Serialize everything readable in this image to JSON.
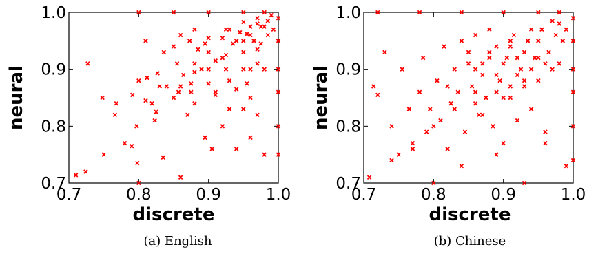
{
  "chart_data": [
    {
      "type": "scatter",
      "caption": "(a) English",
      "xlabel": "discrete",
      "ylabel": "neural",
      "xlim": [
        0.7,
        1.0
      ],
      "ylim": [
        0.7,
        1.0
      ],
      "xticks": [
        "0.7",
        "0.8",
        "0.9",
        "1.0"
      ],
      "yticks": [
        "0.7",
        "0.8",
        "0.9",
        "1.0"
      ],
      "marker": "x",
      "color": "#ff0000",
      "grid": false,
      "points": [
        [
          0.71,
          0.714
        ],
        [
          0.724,
          0.72
        ],
        [
          0.727,
          0.91
        ],
        [
          0.748,
          0.85
        ],
        [
          0.75,
          0.75
        ],
        [
          0.768,
          0.84
        ],
        [
          0.766,
          0.82
        ],
        [
          0.78,
          0.77
        ],
        [
          0.791,
          0.855
        ],
        [
          0.79,
          0.765
        ],
        [
          0.797,
          0.8
        ],
        [
          0.798,
          0.735
        ],
        [
          0.8,
          0.7
        ],
        [
          0.8,
          0.88
        ],
        [
          0.81,
          0.95
        ],
        [
          0.81,
          0.845
        ],
        [
          0.812,
          0.885
        ],
        [
          0.819,
          0.84
        ],
        [
          0.823,
          0.81
        ],
        [
          0.827,
          0.893
        ],
        [
          0.83,
          0.87
        ],
        [
          0.835,
          0.745
        ],
        [
          0.836,
          0.93
        ],
        [
          0.84,
          0.87
        ],
        [
          0.85,
          0.94
        ],
        [
          0.855,
          0.91
        ],
        [
          0.857,
          0.86
        ],
        [
          0.86,
          0.96
        ],
        [
          0.864,
          0.89
        ],
        [
          0.86,
          0.71
        ],
        [
          0.87,
          0.82
        ],
        [
          0.873,
          0.95
        ],
        [
          0.88,
          0.97
        ],
        [
          0.88,
          0.84
        ],
        [
          0.89,
          0.9
        ],
        [
          0.895,
          0.78
        ],
        [
          0.905,
          0.76
        ],
        [
          0.91,
          0.86
        ],
        [
          0.92,
          0.8
        ],
        [
          0.93,
          0.83
        ],
        [
          0.94,
          0.76
        ],
        [
          0.95,
          0.83
        ],
        [
          0.96,
          0.78
        ],
        [
          0.97,
          0.82
        ],
        [
          0.98,
          0.75
        ],
        [
          0.92,
          0.92
        ],
        [
          0.94,
          0.95
        ],
        [
          0.96,
          0.96
        ],
        [
          0.9,
          0.93
        ],
        [
          0.93,
          0.97
        ],
        [
          0.825,
          0.825
        ],
        [
          0.85,
          0.85
        ],
        [
          0.875,
          0.875
        ],
        [
          0.9,
          0.9
        ],
        [
          0.925,
          0.925
        ],
        [
          0.95,
          0.95
        ],
        [
          0.975,
          0.975
        ],
        [
          0.86,
          0.87
        ],
        [
          0.88,
          0.895
        ],
        [
          0.91,
          0.915
        ],
        [
          0.935,
          0.945
        ],
        [
          0.955,
          0.962
        ],
        [
          0.97,
          0.98
        ],
        [
          0.895,
          0.945
        ],
        [
          0.92,
          0.955
        ],
        [
          0.945,
          0.965
        ],
        [
          0.96,
          0.975
        ],
        [
          0.885,
          0.935
        ],
        [
          0.9,
          0.955
        ],
        [
          0.925,
          0.97
        ],
        [
          0.95,
          0.983
        ],
        [
          0.875,
          0.86
        ],
        [
          0.9,
          0.875
        ],
        [
          0.925,
          0.9
        ],
        [
          0.95,
          0.93
        ],
        [
          0.965,
          0.95
        ],
        [
          0.98,
          0.975
        ],
        [
          0.91,
          0.855
        ],
        [
          0.93,
          0.88
        ],
        [
          0.95,
          0.9
        ],
        [
          0.97,
          0.935
        ],
        [
          0.94,
          0.865
        ],
        [
          0.96,
          0.9
        ],
        [
          0.975,
          0.945
        ],
        [
          0.955,
          0.875
        ],
        [
          0.97,
          0.91
        ],
        [
          0.985,
          0.96
        ],
        [
          0.96,
          0.85
        ],
        [
          0.98,
          0.9
        ],
        [
          1.0,
          0.99
        ],
        [
          1.0,
          0.95
        ],
        [
          1.0,
          0.9
        ],
        [
          1.0,
          0.86
        ],
        [
          1.0,
          0.8
        ],
        [
          1.0,
          0.75
        ],
        [
          0.8,
          1.0
        ],
        [
          0.85,
          1.0
        ],
        [
          0.9,
          1.0
        ],
        [
          0.95,
          1.0
        ],
        [
          0.98,
          1.0
        ],
        [
          0.99,
          0.995
        ],
        [
          0.985,
          0.985
        ],
        [
          0.993,
          0.97
        ],
        [
          0.97,
          0.99
        ],
        [
          0.88,
          0.91
        ]
      ]
    },
    {
      "type": "scatter",
      "caption": "(b) Chinese",
      "xlabel": "discrete",
      "ylabel": "neural",
      "xlim": [
        0.7,
        1.0
      ],
      "ylim": [
        0.7,
        1.0
      ],
      "xticks": [
        "0.7",
        "0.8",
        "0.9",
        "1.0"
      ],
      "yticks": [
        "0.7",
        "0.8",
        "0.9",
        "1.0"
      ],
      "marker": "x",
      "color": "#ff0000",
      "grid": false,
      "points": [
        [
          0.708,
          0.71
        ],
        [
          0.714,
          0.87
        ],
        [
          0.72,
          0.855
        ],
        [
          0.73,
          0.93
        ],
        [
          0.74,
          0.8
        ],
        [
          0.75,
          0.75
        ],
        [
          0.755,
          0.9
        ],
        [
          0.765,
          0.83
        ],
        [
          0.77,
          0.76
        ],
        [
          0.78,
          0.86
        ],
        [
          0.785,
          0.92
        ],
        [
          0.79,
          0.79
        ],
        [
          0.795,
          0.83
        ],
        [
          0.8,
          0.7
        ],
        [
          0.805,
          0.88
        ],
        [
          0.81,
          0.81
        ],
        [
          0.815,
          0.94
        ],
        [
          0.82,
          0.76
        ],
        [
          0.825,
          0.84
        ],
        [
          0.83,
          0.9
        ],
        [
          0.835,
          0.86
        ],
        [
          0.84,
          0.95
        ],
        [
          0.845,
          0.79
        ],
        [
          0.85,
          0.93
        ],
        [
          0.855,
          0.87
        ],
        [
          0.86,
          0.96
        ],
        [
          0.865,
          0.82
        ],
        [
          0.87,
          0.91
        ],
        [
          0.875,
          0.85
        ],
        [
          0.88,
          0.97
        ],
        [
          0.885,
          0.8
        ],
        [
          0.89,
          0.94
        ],
        [
          0.895,
          0.88
        ],
        [
          0.9,
          0.77
        ],
        [
          0.905,
          0.92
        ],
        [
          0.91,
          0.85
        ],
        [
          0.915,
          0.96
        ],
        [
          0.92,
          0.81
        ],
        [
          0.925,
          0.9
        ],
        [
          0.93,
          0.87
        ],
        [
          0.935,
          0.95
        ],
        [
          0.94,
          0.83
        ],
        [
          0.945,
          0.92
        ],
        [
          0.95,
          0.88
        ],
        [
          0.955,
          0.97
        ],
        [
          0.96,
          0.79
        ],
        [
          0.965,
          0.93
        ],
        [
          0.97,
          0.9
        ],
        [
          0.975,
          0.96
        ],
        [
          0.98,
          0.91
        ],
        [
          0.985,
          0.95
        ],
        [
          0.99,
          0.97
        ],
        [
          0.74,
          0.74
        ],
        [
          0.77,
          0.77
        ],
        [
          0.8,
          0.8
        ],
        [
          0.83,
          0.83
        ],
        [
          0.86,
          0.86
        ],
        [
          0.89,
          0.89
        ],
        [
          0.92,
          0.92
        ],
        [
          0.95,
          0.95
        ],
        [
          0.98,
          0.98
        ],
        [
          0.88,
          0.93
        ],
        [
          0.91,
          0.95
        ],
        [
          0.94,
          0.97
        ],
        [
          0.97,
          0.985
        ],
        [
          0.87,
          0.82
        ],
        [
          0.9,
          0.85
        ],
        [
          0.93,
          0.88
        ],
        [
          0.96,
          0.91
        ],
        [
          0.85,
          0.91
        ],
        [
          0.88,
          0.92
        ],
        [
          0.91,
          0.94
        ],
        [
          0.89,
          0.86
        ],
        [
          0.92,
          0.89
        ],
        [
          0.95,
          0.92
        ],
        [
          0.87,
          0.89
        ],
        [
          0.9,
          0.91
        ],
        [
          0.93,
          0.93
        ],
        [
          0.86,
          0.84
        ],
        [
          0.94,
          0.9
        ],
        [
          1.0,
          0.99
        ],
        [
          1.0,
          0.95
        ],
        [
          1.0,
          0.9
        ],
        [
          1.0,
          0.86
        ],
        [
          1.0,
          0.8
        ],
        [
          1.0,
          0.74
        ],
        [
          0.72,
          1.0
        ],
        [
          0.78,
          1.0
        ],
        [
          0.84,
          1.0
        ],
        [
          0.9,
          1.0
        ],
        [
          0.95,
          1.0
        ],
        [
          0.98,
          1.0
        ],
        [
          0.84,
          0.73
        ],
        [
          0.89,
          0.75
        ],
        [
          0.93,
          0.7
        ],
        [
          0.96,
          0.77
        ],
        [
          0.99,
          0.73
        ],
        [
          0.82,
          0.87
        ],
        [
          0.86,
          0.9
        ],
        [
          0.91,
          0.87
        ]
      ]
    }
  ]
}
